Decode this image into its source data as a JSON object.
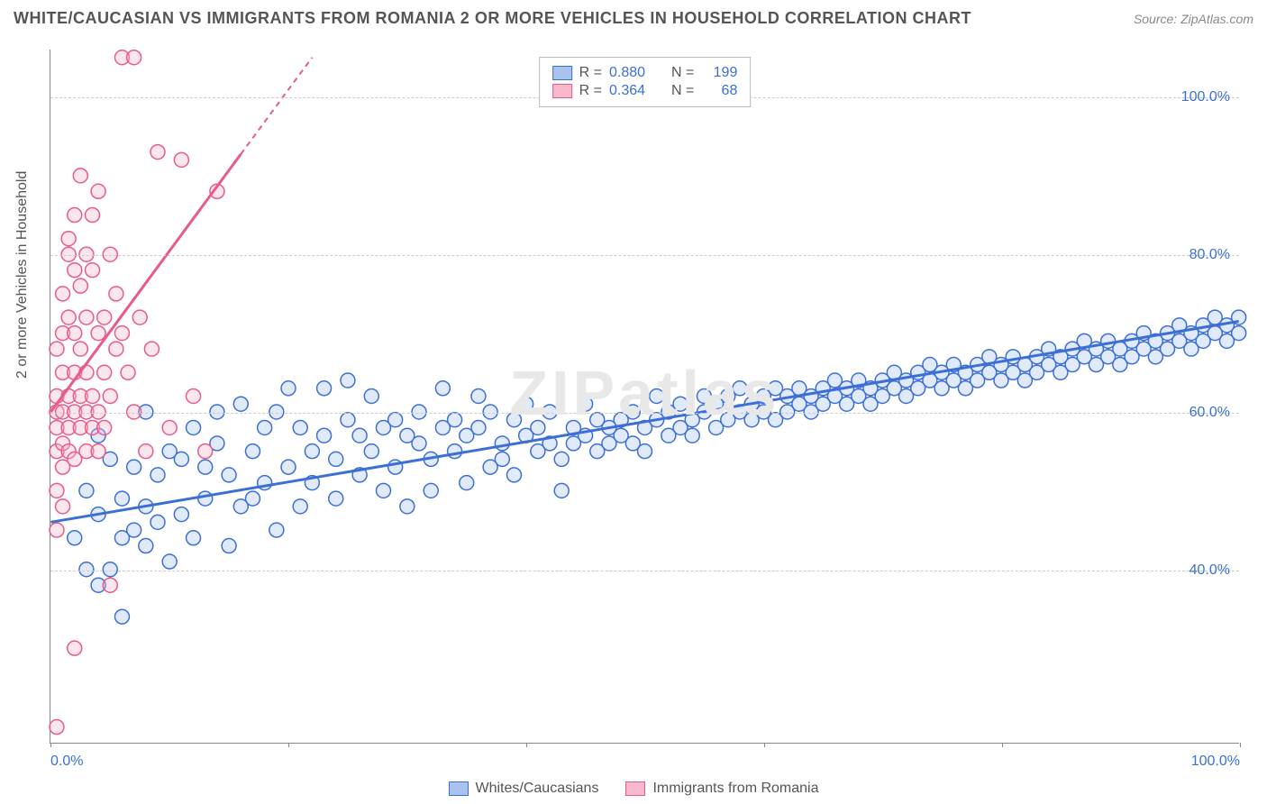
{
  "header": {
    "title": "WHITE/CAUCASIAN VS IMMIGRANTS FROM ROMANIA 2 OR MORE VEHICLES IN HOUSEHOLD CORRELATION CHART",
    "source": "Source: ZipAtlas.com"
  },
  "chart": {
    "type": "scatter",
    "y_label": "2 or more Vehicles in Household",
    "xlim": [
      0,
      100
    ],
    "ylim": [
      18,
      106
    ],
    "x_ticks": [
      0,
      20,
      40,
      60,
      80,
      100
    ],
    "x_tick_labels": {
      "0": "0.0%",
      "100": "100.0%"
    },
    "y_ticks": [
      40,
      60,
      80,
      100
    ],
    "y_tick_labels": {
      "40": "40.0%",
      "60": "60.0%",
      "80": "80.0%",
      "100": "100.0%"
    },
    "background_color": "#ffffff",
    "grid_color": "#cccccc",
    "axis_color": "#888888",
    "tick_label_color": "#3b6fd6",
    "marker_radius": 8,
    "marker_stroke_width": 1.5,
    "marker_fill_opacity": 0.35,
    "series": [
      {
        "name": "Whites/Caucasians",
        "color_stroke": "#3b6fd6",
        "color_fill": "#a8c3f0",
        "R": "0.880",
        "N": "199",
        "trend": {
          "x1": 0,
          "y1": 46,
          "x2": 100,
          "y2": 71.5,
          "dashed_from": null
        },
        "points": [
          [
            2,
            44
          ],
          [
            3,
            50
          ],
          [
            3,
            40
          ],
          [
            4,
            38
          ],
          [
            4,
            47
          ],
          [
            4,
            57
          ],
          [
            5,
            40
          ],
          [
            5,
            54
          ],
          [
            6,
            34
          ],
          [
            6,
            44
          ],
          [
            6,
            49
          ],
          [
            7,
            53
          ],
          [
            7,
            45
          ],
          [
            8,
            60
          ],
          [
            8,
            43
          ],
          [
            8,
            48
          ],
          [
            9,
            46
          ],
          [
            9,
            52
          ],
          [
            10,
            55
          ],
          [
            10,
            41
          ],
          [
            11,
            47
          ],
          [
            11,
            54
          ],
          [
            12,
            58
          ],
          [
            12,
            44
          ],
          [
            13,
            49
          ],
          [
            13,
            53
          ],
          [
            14,
            60
          ],
          [
            14,
            56
          ],
          [
            15,
            43
          ],
          [
            15,
            52
          ],
          [
            16,
            48
          ],
          [
            16,
            61
          ],
          [
            17,
            49
          ],
          [
            17,
            55
          ],
          [
            18,
            58
          ],
          [
            18,
            51
          ],
          [
            19,
            60
          ],
          [
            19,
            45
          ],
          [
            20,
            53
          ],
          [
            20,
            63
          ],
          [
            21,
            48
          ],
          [
            21,
            58
          ],
          [
            22,
            55
          ],
          [
            22,
            51
          ],
          [
            23,
            57
          ],
          [
            23,
            63
          ],
          [
            24,
            49
          ],
          [
            24,
            54
          ],
          [
            25,
            59
          ],
          [
            25,
            64
          ],
          [
            26,
            52
          ],
          [
            26,
            57
          ],
          [
            27,
            55
          ],
          [
            27,
            62
          ],
          [
            28,
            50
          ],
          [
            28,
            58
          ],
          [
            29,
            59
          ],
          [
            29,
            53
          ],
          [
            30,
            48
          ],
          [
            30,
            57
          ],
          [
            31,
            56
          ],
          [
            31,
            60
          ],
          [
            32,
            54
          ],
          [
            32,
            50
          ],
          [
            33,
            58
          ],
          [
            33,
            63
          ],
          [
            34,
            55
          ],
          [
            34,
            59
          ],
          [
            35,
            51
          ],
          [
            35,
            57
          ],
          [
            36,
            58
          ],
          [
            36,
            62
          ],
          [
            37,
            53
          ],
          [
            37,
            60
          ],
          [
            38,
            56
          ],
          [
            38,
            54
          ],
          [
            39,
            59
          ],
          [
            39,
            52
          ],
          [
            40,
            57
          ],
          [
            40,
            61
          ],
          [
            41,
            55
          ],
          [
            41,
            58
          ],
          [
            42,
            56
          ],
          [
            42,
            60
          ],
          [
            43,
            54
          ],
          [
            43,
            50
          ],
          [
            44,
            58
          ],
          [
            44,
            56
          ],
          [
            45,
            57
          ],
          [
            45,
            61
          ],
          [
            46,
            55
          ],
          [
            46,
            59
          ],
          [
            47,
            58
          ],
          [
            47,
            56
          ],
          [
            48,
            59
          ],
          [
            48,
            57
          ],
          [
            49,
            56
          ],
          [
            49,
            60
          ],
          [
            50,
            58
          ],
          [
            50,
            55
          ],
          [
            51,
            59
          ],
          [
            51,
            62
          ],
          [
            52,
            57
          ],
          [
            52,
            60
          ],
          [
            53,
            58
          ],
          [
            53,
            61
          ],
          [
            54,
            59
          ],
          [
            54,
            57
          ],
          [
            55,
            60
          ],
          [
            55,
            62
          ],
          [
            56,
            58
          ],
          [
            56,
            61
          ],
          [
            57,
            59
          ],
          [
            57,
            62
          ],
          [
            58,
            60
          ],
          [
            58,
            63
          ],
          [
            59,
            59
          ],
          [
            59,
            61
          ],
          [
            60,
            62
          ],
          [
            60,
            60
          ],
          [
            61,
            59
          ],
          [
            61,
            63
          ],
          [
            62,
            60
          ],
          [
            62,
            62
          ],
          [
            63,
            61
          ],
          [
            63,
            63
          ],
          [
            64,
            62
          ],
          [
            64,
            60
          ],
          [
            65,
            61
          ],
          [
            65,
            63
          ],
          [
            66,
            62
          ],
          [
            66,
            64
          ],
          [
            67,
            61
          ],
          [
            67,
            63
          ],
          [
            68,
            62
          ],
          [
            68,
            64
          ],
          [
            69,
            63
          ],
          [
            69,
            61
          ],
          [
            70,
            64
          ],
          [
            70,
            62
          ],
          [
            71,
            63
          ],
          [
            71,
            65
          ],
          [
            72,
            64
          ],
          [
            72,
            62
          ],
          [
            73,
            63
          ],
          [
            73,
            65
          ],
          [
            74,
            64
          ],
          [
            74,
            66
          ],
          [
            75,
            63
          ],
          [
            75,
            65
          ],
          [
            76,
            64
          ],
          [
            76,
            66
          ],
          [
            77,
            65
          ],
          [
            77,
            63
          ],
          [
            78,
            66
          ],
          [
            78,
            64
          ],
          [
            79,
            65
          ],
          [
            79,
            67
          ],
          [
            80,
            64
          ],
          [
            80,
            66
          ],
          [
            81,
            65
          ],
          [
            81,
            67
          ],
          [
            82,
            66
          ],
          [
            82,
            64
          ],
          [
            83,
            67
          ],
          [
            83,
            65
          ],
          [
            84,
            66
          ],
          [
            84,
            68
          ],
          [
            85,
            67
          ],
          [
            85,
            65
          ],
          [
            86,
            66
          ],
          [
            86,
            68
          ],
          [
            87,
            67
          ],
          [
            87,
            69
          ],
          [
            88,
            66
          ],
          [
            88,
            68
          ],
          [
            89,
            67
          ],
          [
            89,
            69
          ],
          [
            90,
            68
          ],
          [
            90,
            66
          ],
          [
            91,
            69
          ],
          [
            91,
            67
          ],
          [
            92,
            68
          ],
          [
            92,
            70
          ],
          [
            93,
            67
          ],
          [
            93,
            69
          ],
          [
            94,
            68
          ],
          [
            94,
            70
          ],
          [
            95,
            69
          ],
          [
            95,
            71
          ],
          [
            96,
            68
          ],
          [
            96,
            70
          ],
          [
            97,
            69
          ],
          [
            97,
            71
          ],
          [
            98,
            70
          ],
          [
            98,
            72
          ],
          [
            99,
            71
          ],
          [
            99,
            69
          ],
          [
            100,
            72
          ],
          [
            100,
            70
          ]
        ]
      },
      {
        "name": "Immigrants from Romania",
        "color_stroke": "#e85a8a",
        "color_fill": "#f7b8cf",
        "R": "0.364",
        "N": "68",
        "trend": {
          "x1": 0,
          "y1": 60,
          "x2": 22,
          "y2": 105,
          "dashed_from": 16
        },
        "points": [
          [
            0.5,
            58
          ],
          [
            0.5,
            62
          ],
          [
            0.5,
            55
          ],
          [
            0.5,
            60
          ],
          [
            0.5,
            68
          ],
          [
            0.5,
            50
          ],
          [
            0.5,
            20
          ],
          [
            0.5,
            45
          ],
          [
            1,
            70
          ],
          [
            1,
            56
          ],
          [
            1,
            60
          ],
          [
            1,
            65
          ],
          [
            1,
            53
          ],
          [
            1,
            75
          ],
          [
            1,
            48
          ],
          [
            1.5,
            80
          ],
          [
            1.5,
            58
          ],
          [
            1.5,
            62
          ],
          [
            1.5,
            55
          ],
          [
            1.5,
            72
          ],
          [
            1.5,
            82
          ],
          [
            2,
            60
          ],
          [
            2,
            65
          ],
          [
            2,
            70
          ],
          [
            2,
            78
          ],
          [
            2,
            54
          ],
          [
            2,
            85
          ],
          [
            2,
            30
          ],
          [
            2.5,
            76
          ],
          [
            2.5,
            58
          ],
          [
            2.5,
            62
          ],
          [
            2.5,
            90
          ],
          [
            2.5,
            68
          ],
          [
            3,
            60
          ],
          [
            3,
            72
          ],
          [
            3,
            65
          ],
          [
            3,
            80
          ],
          [
            3,
            55
          ],
          [
            3.5,
            78
          ],
          [
            3.5,
            58
          ],
          [
            3.5,
            85
          ],
          [
            3.5,
            62
          ],
          [
            4,
            70
          ],
          [
            4,
            60
          ],
          [
            4,
            88
          ],
          [
            4,
            55
          ],
          [
            4.5,
            72
          ],
          [
            4.5,
            65
          ],
          [
            4.5,
            58
          ],
          [
            5,
            38
          ],
          [
            5,
            80
          ],
          [
            5,
            62
          ],
          [
            5.5,
            68
          ],
          [
            5.5,
            75
          ],
          [
            6,
            105
          ],
          [
            6,
            70
          ],
          [
            6.5,
            65
          ],
          [
            7,
            105
          ],
          [
            7,
            60
          ],
          [
            7.5,
            72
          ],
          [
            8,
            55
          ],
          [
            8.5,
            68
          ],
          [
            9,
            93
          ],
          [
            10,
            58
          ],
          [
            11,
            92
          ],
          [
            12,
            62
          ],
          [
            13,
            55
          ],
          [
            14,
            88
          ]
        ]
      }
    ]
  },
  "legend_top": {
    "r_label": "R =",
    "n_label": "N ="
  },
  "legend_bottom": {
    "items": [
      "Whites/Caucasians",
      "Immigrants from Romania"
    ]
  },
  "watermark": {
    "text": "ZIPatlas",
    "color": "#e8e8e8"
  }
}
